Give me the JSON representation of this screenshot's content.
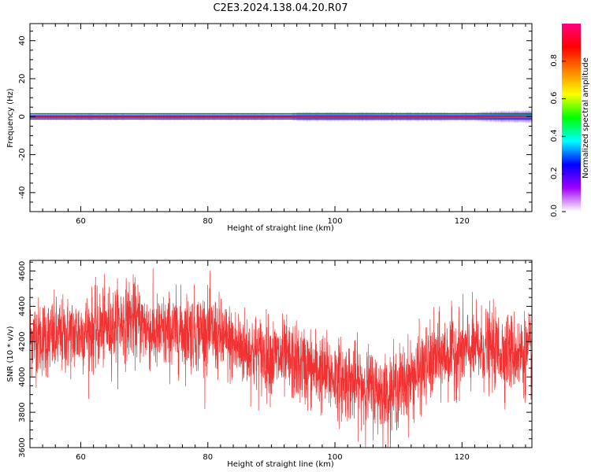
{
  "title": "C2E3.2024.138.04.20.R07",
  "chart_data": [
    {
      "type": "heatmap",
      "name": "spectrogram",
      "xlabel": "Height of straight line (km)",
      "ylabel": "Frequency (Hz)",
      "xlim": [
        52,
        131
      ],
      "ylim": [
        -50,
        49
      ],
      "xticks": [
        60,
        80,
        100,
        120
      ],
      "xtick_labels": [
        "60",
        "80",
        "100",
        "120"
      ],
      "yticks": [
        40,
        20,
        0,
        -20,
        -40
      ],
      "ytick_labels": [
        "40",
        "20",
        "0",
        "-20",
        "-40"
      ],
      "description_of_content": "Narrow horizontal band centred at 0 Hz across all heights; peak amplitude (red, ~1.0) at 0 Hz flanked by green/blue/purple edges; band widens to about ±3 Hz beyond 124 km.",
      "center_frequency_hz": 0,
      "band_halfwidth_hz": [
        {
          "height_km": 52,
          "halfwidth": 2.0
        },
        {
          "height_km": 93,
          "halfwidth": 2.0
        },
        {
          "height_km": 95,
          "halfwidth": 2.6
        },
        {
          "height_km": 122,
          "halfwidth": 2.4
        },
        {
          "height_km": 126,
          "halfwidth": 3.2
        },
        {
          "height_km": 131,
          "halfwidth": 3.6
        }
      ],
      "colorbar": {
        "label": "Normalized spectral amplitude",
        "range": [
          0.0,
          1.0
        ],
        "ticks": [
          0.0,
          0.2,
          0.4,
          0.6,
          0.8
        ],
        "tick_labels": [
          "0.0",
          "0.2",
          "0.4",
          "0.6",
          "0.8"
        ],
        "colormap": [
          "#ffffff",
          "#a000ff",
          "#0000ff",
          "#00ffff",
          "#00ff00",
          "#ffff00",
          "#ff8000",
          "#ff0000",
          "#ff0080"
        ]
      }
    },
    {
      "type": "line",
      "name": "snr",
      "xlabel": "Height of straight line (km)",
      "ylabel": "SNR (10 * v/v)",
      "xlim": [
        52,
        131
      ],
      "ylim": [
        3600,
        4660
      ],
      "xticks": [
        60,
        80,
        100,
        120
      ],
      "xtick_labels": [
        "60",
        "80",
        "100",
        "120"
      ],
      "yticks": [
        3600,
        3800,
        4000,
        4200,
        4400,
        4600
      ],
      "ytick_labels": [
        "3600",
        "3800",
        "4000",
        "4200",
        "4400",
        "4600"
      ],
      "color": "#f03232",
      "trend_heights_km": [
        52,
        56,
        60,
        64,
        68,
        72,
        76,
        80,
        84,
        88,
        92,
        96,
        100,
        104,
        108,
        112,
        116,
        120,
        124,
        128,
        131
      ],
      "trend_snr": [
        4230,
        4220,
        4250,
        4280,
        4330,
        4240,
        4260,
        4260,
        4180,
        4130,
        4100,
        4050,
        4000,
        3960,
        3900,
        3990,
        4110,
        4150,
        4160,
        4140,
        4130
      ],
      "noise_std": 110,
      "notes": "Dense noisy trace with about 3000 samples; peak near 4660 at ~67 km, minimum near 3600 at ~108 km."
    }
  ],
  "colors": {
    "line": "#f03232",
    "axes": "#000000",
    "background": "#ffffff"
  }
}
